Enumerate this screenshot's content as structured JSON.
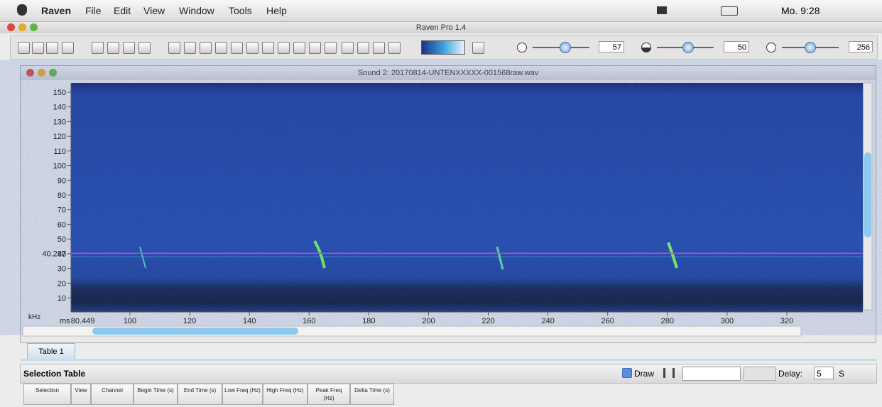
{
  "menubar": {
    "items": [
      "Raven",
      "File",
      "Edit",
      "View",
      "Window",
      "Tools",
      "Help"
    ],
    "clock": "Mo. 9:28"
  },
  "app_title": "Raven Pro 1.4",
  "toolbar": {
    "slider_values": [
      57,
      50,
      256
    ]
  },
  "sound_window": {
    "title": "Sound 2: 20170814-UNTENXXXXX-001568raw.wav",
    "y_unit": "kHz",
    "yticks": [
      10,
      20,
      30,
      40,
      50,
      60,
      70,
      80,
      90,
      100,
      110,
      120,
      130,
      140,
      150
    ],
    "cursor_freq": 40.287,
    "x_unit": "ms",
    "x_start": 80.449,
    "xticks": [
      100,
      120,
      140,
      160,
      180,
      200,
      220,
      240,
      260,
      280,
      300,
      320
    ]
  },
  "tabs": [
    "Table 1"
  ],
  "selection_table": {
    "title": "Selection Table",
    "draw": "Draw",
    "delay_label": "Delay:",
    "delay": 5,
    "delay_unit": "S",
    "columns": [
      "Selection",
      "View",
      "Channel",
      "Begin Time (s)",
      "End Time (s)",
      "Low Freq (Hz)",
      "High Freq (Hz)",
      "Peak Freq (Hz)",
      "Delta Time (s)"
    ]
  }
}
